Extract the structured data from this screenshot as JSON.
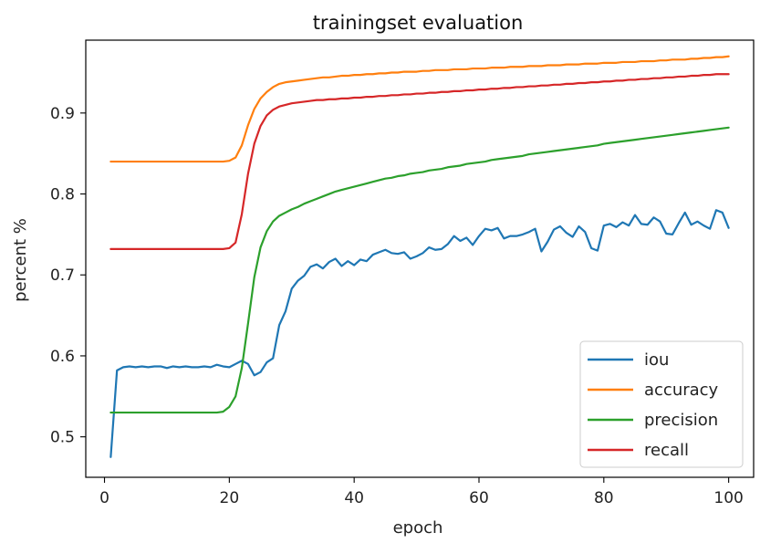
{
  "chart_data": {
    "type": "line",
    "title": "trainingset evaluation",
    "xlabel": "epoch",
    "ylabel": "percent %",
    "xlim": [
      -3,
      104
    ],
    "ylim": [
      0.45,
      0.99
    ],
    "xticks": [
      0,
      20,
      40,
      60,
      80,
      100
    ],
    "yticks": [
      0.5,
      0.6,
      0.7,
      0.8,
      0.9
    ],
    "xtick_labels": [
      "0",
      "20",
      "40",
      "60",
      "80",
      "100"
    ],
    "ytick_labels": [
      "0.5",
      "0.6",
      "0.7",
      "0.8",
      "0.9"
    ],
    "grid": false,
    "legend_position": "lower-right",
    "x": [
      1,
      2,
      3,
      4,
      5,
      6,
      7,
      8,
      9,
      10,
      11,
      12,
      13,
      14,
      15,
      16,
      17,
      18,
      19,
      20,
      21,
      22,
      23,
      24,
      25,
      26,
      27,
      28,
      29,
      30,
      31,
      32,
      33,
      34,
      35,
      36,
      37,
      38,
      39,
      40,
      41,
      42,
      43,
      44,
      45,
      46,
      47,
      48,
      49,
      50,
      51,
      52,
      53,
      54,
      55,
      56,
      57,
      58,
      59,
      60,
      61,
      62,
      63,
      64,
      65,
      66,
      67,
      68,
      69,
      70,
      71,
      72,
      73,
      74,
      75,
      76,
      77,
      78,
      79,
      80,
      81,
      82,
      83,
      84,
      85,
      86,
      87,
      88,
      89,
      90,
      91,
      92,
      93,
      94,
      95,
      96,
      97,
      98,
      99,
      100
    ],
    "series": [
      {
        "name": "iou",
        "color": "#1f77b4",
        "values": [
          0.475,
          0.582,
          0.586,
          0.587,
          0.586,
          0.587,
          0.586,
          0.587,
          0.587,
          0.585,
          0.587,
          0.586,
          0.587,
          0.586,
          0.586,
          0.587,
          0.586,
          0.589,
          0.587,
          0.586,
          0.59,
          0.594,
          0.59,
          0.576,
          0.58,
          0.592,
          0.597,
          0.638,
          0.655,
          0.683,
          0.693,
          0.699,
          0.71,
          0.713,
          0.708,
          0.716,
          0.72,
          0.711,
          0.717,
          0.712,
          0.719,
          0.717,
          0.725,
          0.728,
          0.731,
          0.727,
          0.726,
          0.728,
          0.72,
          0.723,
          0.727,
          0.734,
          0.731,
          0.732,
          0.738,
          0.748,
          0.742,
          0.746,
          0.737,
          0.748,
          0.757,
          0.755,
          0.758,
          0.745,
          0.748,
          0.748,
          0.75,
          0.753,
          0.757,
          0.729,
          0.741,
          0.756,
          0.76,
          0.752,
          0.747,
          0.76,
          0.753,
          0.733,
          0.73,
          0.761,
          0.763,
          0.759,
          0.765,
          0.761,
          0.774,
          0.763,
          0.762,
          0.771,
          0.766,
          0.751,
          0.75,
          0.764,
          0.777,
          0.762,
          0.766,
          0.761,
          0.757,
          0.78,
          0.777,
          0.758
        ]
      },
      {
        "name": "accuracy",
        "color": "#ff7f0e",
        "values": [
          0.84,
          0.84,
          0.84,
          0.84,
          0.84,
          0.84,
          0.84,
          0.84,
          0.84,
          0.84,
          0.84,
          0.84,
          0.84,
          0.84,
          0.84,
          0.84,
          0.84,
          0.84,
          0.84,
          0.841,
          0.845,
          0.86,
          0.885,
          0.905,
          0.918,
          0.926,
          0.932,
          0.936,
          0.938,
          0.939,
          0.94,
          0.941,
          0.942,
          0.943,
          0.944,
          0.944,
          0.945,
          0.946,
          0.946,
          0.947,
          0.947,
          0.948,
          0.948,
          0.949,
          0.949,
          0.95,
          0.95,
          0.951,
          0.951,
          0.951,
          0.952,
          0.952,
          0.953,
          0.953,
          0.953,
          0.954,
          0.954,
          0.954,
          0.955,
          0.955,
          0.955,
          0.956,
          0.956,
          0.956,
          0.957,
          0.957,
          0.957,
          0.958,
          0.958,
          0.958,
          0.959,
          0.959,
          0.959,
          0.96,
          0.96,
          0.96,
          0.961,
          0.961,
          0.961,
          0.962,
          0.962,
          0.962,
          0.963,
          0.963,
          0.963,
          0.964,
          0.964,
          0.964,
          0.965,
          0.965,
          0.966,
          0.966,
          0.966,
          0.967,
          0.967,
          0.968,
          0.968,
          0.969,
          0.969,
          0.97
        ]
      },
      {
        "name": "precision",
        "color": "#2ca02c",
        "values": [
          0.53,
          0.53,
          0.53,
          0.53,
          0.53,
          0.53,
          0.53,
          0.53,
          0.53,
          0.53,
          0.53,
          0.53,
          0.53,
          0.53,
          0.53,
          0.53,
          0.53,
          0.53,
          0.531,
          0.537,
          0.55,
          0.585,
          0.64,
          0.697,
          0.734,
          0.754,
          0.766,
          0.773,
          0.777,
          0.781,
          0.784,
          0.788,
          0.791,
          0.794,
          0.797,
          0.8,
          0.803,
          0.805,
          0.807,
          0.809,
          0.811,
          0.813,
          0.815,
          0.817,
          0.819,
          0.82,
          0.822,
          0.823,
          0.825,
          0.826,
          0.827,
          0.829,
          0.83,
          0.831,
          0.833,
          0.834,
          0.835,
          0.837,
          0.838,
          0.839,
          0.84,
          0.842,
          0.843,
          0.844,
          0.845,
          0.846,
          0.847,
          0.849,
          0.85,
          0.851,
          0.852,
          0.853,
          0.854,
          0.855,
          0.856,
          0.857,
          0.858,
          0.859,
          0.86,
          0.862,
          0.863,
          0.864,
          0.865,
          0.866,
          0.867,
          0.868,
          0.869,
          0.87,
          0.871,
          0.872,
          0.873,
          0.874,
          0.875,
          0.876,
          0.877,
          0.878,
          0.879,
          0.88,
          0.881,
          0.882
        ]
      },
      {
        "name": "recall",
        "color": "#d62728",
        "values": [
          0.732,
          0.732,
          0.732,
          0.732,
          0.732,
          0.732,
          0.732,
          0.732,
          0.732,
          0.732,
          0.732,
          0.732,
          0.732,
          0.732,
          0.732,
          0.732,
          0.732,
          0.732,
          0.732,
          0.733,
          0.74,
          0.775,
          0.825,
          0.862,
          0.884,
          0.897,
          0.904,
          0.908,
          0.91,
          0.912,
          0.913,
          0.914,
          0.915,
          0.916,
          0.916,
          0.917,
          0.917,
          0.918,
          0.918,
          0.919,
          0.919,
          0.92,
          0.92,
          0.921,
          0.921,
          0.922,
          0.922,
          0.923,
          0.923,
          0.924,
          0.924,
          0.925,
          0.925,
          0.926,
          0.926,
          0.927,
          0.927,
          0.928,
          0.928,
          0.929,
          0.929,
          0.93,
          0.93,
          0.931,
          0.931,
          0.932,
          0.932,
          0.933,
          0.933,
          0.934,
          0.934,
          0.935,
          0.935,
          0.936,
          0.936,
          0.937,
          0.937,
          0.938,
          0.938,
          0.939,
          0.939,
          0.94,
          0.94,
          0.941,
          0.941,
          0.942,
          0.942,
          0.943,
          0.943,
          0.944,
          0.944,
          0.945,
          0.945,
          0.946,
          0.946,
          0.947,
          0.947,
          0.948,
          0.948,
          0.948
        ]
      }
    ]
  }
}
